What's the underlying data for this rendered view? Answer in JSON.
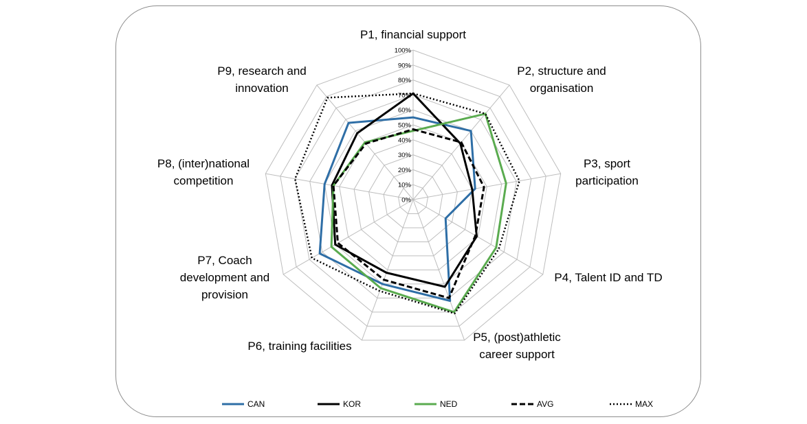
{
  "chart_data": {
    "type": "radar",
    "title": "",
    "axes": [
      "P1, financial support",
      "P2, structure and organisation",
      "P3, sport participation",
      "P4, Talent ID and TD",
      "P5, (post)athletic career support",
      "P6, training facilities",
      "P7, Coach development and provision",
      "P8, (inter)national competition",
      "P9, research and innovation"
    ],
    "axis_label_lines": [
      [
        "P1, financial support"
      ],
      [
        "P2, structure and",
        "organisation"
      ],
      [
        "P3, sport",
        "participation"
      ],
      [
        "P4, Talent ID and TD"
      ],
      [
        "P5, (post)athletic",
        "career support"
      ],
      [
        "P6, training facilities"
      ],
      [
        "P7, Coach",
        "development and",
        "provision"
      ],
      [
        "P8, (inter)national",
        "competition"
      ],
      [
        "P9, research and",
        "innovation"
      ]
    ],
    "ticks": [
      "0%",
      "10%",
      "20%",
      "30%",
      "40%",
      "50%",
      "60%",
      "70%",
      "80%",
      "90%",
      "100%"
    ],
    "range": [
      0,
      100
    ],
    "series": [
      {
        "name": "CAN",
        "color": "#2e6ea6",
        "dash": "solid",
        "values": [
          55,
          60,
          42,
          25,
          72,
          60,
          72,
          60,
          67
        ]
      },
      {
        "name": "KOR",
        "color": "#000000",
        "dash": "solid",
        "values": [
          71,
          49,
          40,
          49,
          62,
          52,
          60,
          55,
          58
        ]
      },
      {
        "name": "NED",
        "color": "#5aab4f",
        "dash": "solid",
        "values": [
          46,
          75,
          63,
          64,
          80,
          63,
          63,
          54,
          50
        ]
      },
      {
        "name": "AVG",
        "color": "#000000",
        "dash": "dashed",
        "values": [
          47,
          50,
          48,
          48,
          70,
          57,
          58,
          54,
          49
        ]
      },
      {
        "name": "MAX",
        "color": "#000000",
        "dash": "dotted",
        "values": [
          71,
          75,
          72,
          66,
          81,
          65,
          78,
          80,
          89
        ]
      }
    ],
    "legend_position": "bottom-center"
  }
}
